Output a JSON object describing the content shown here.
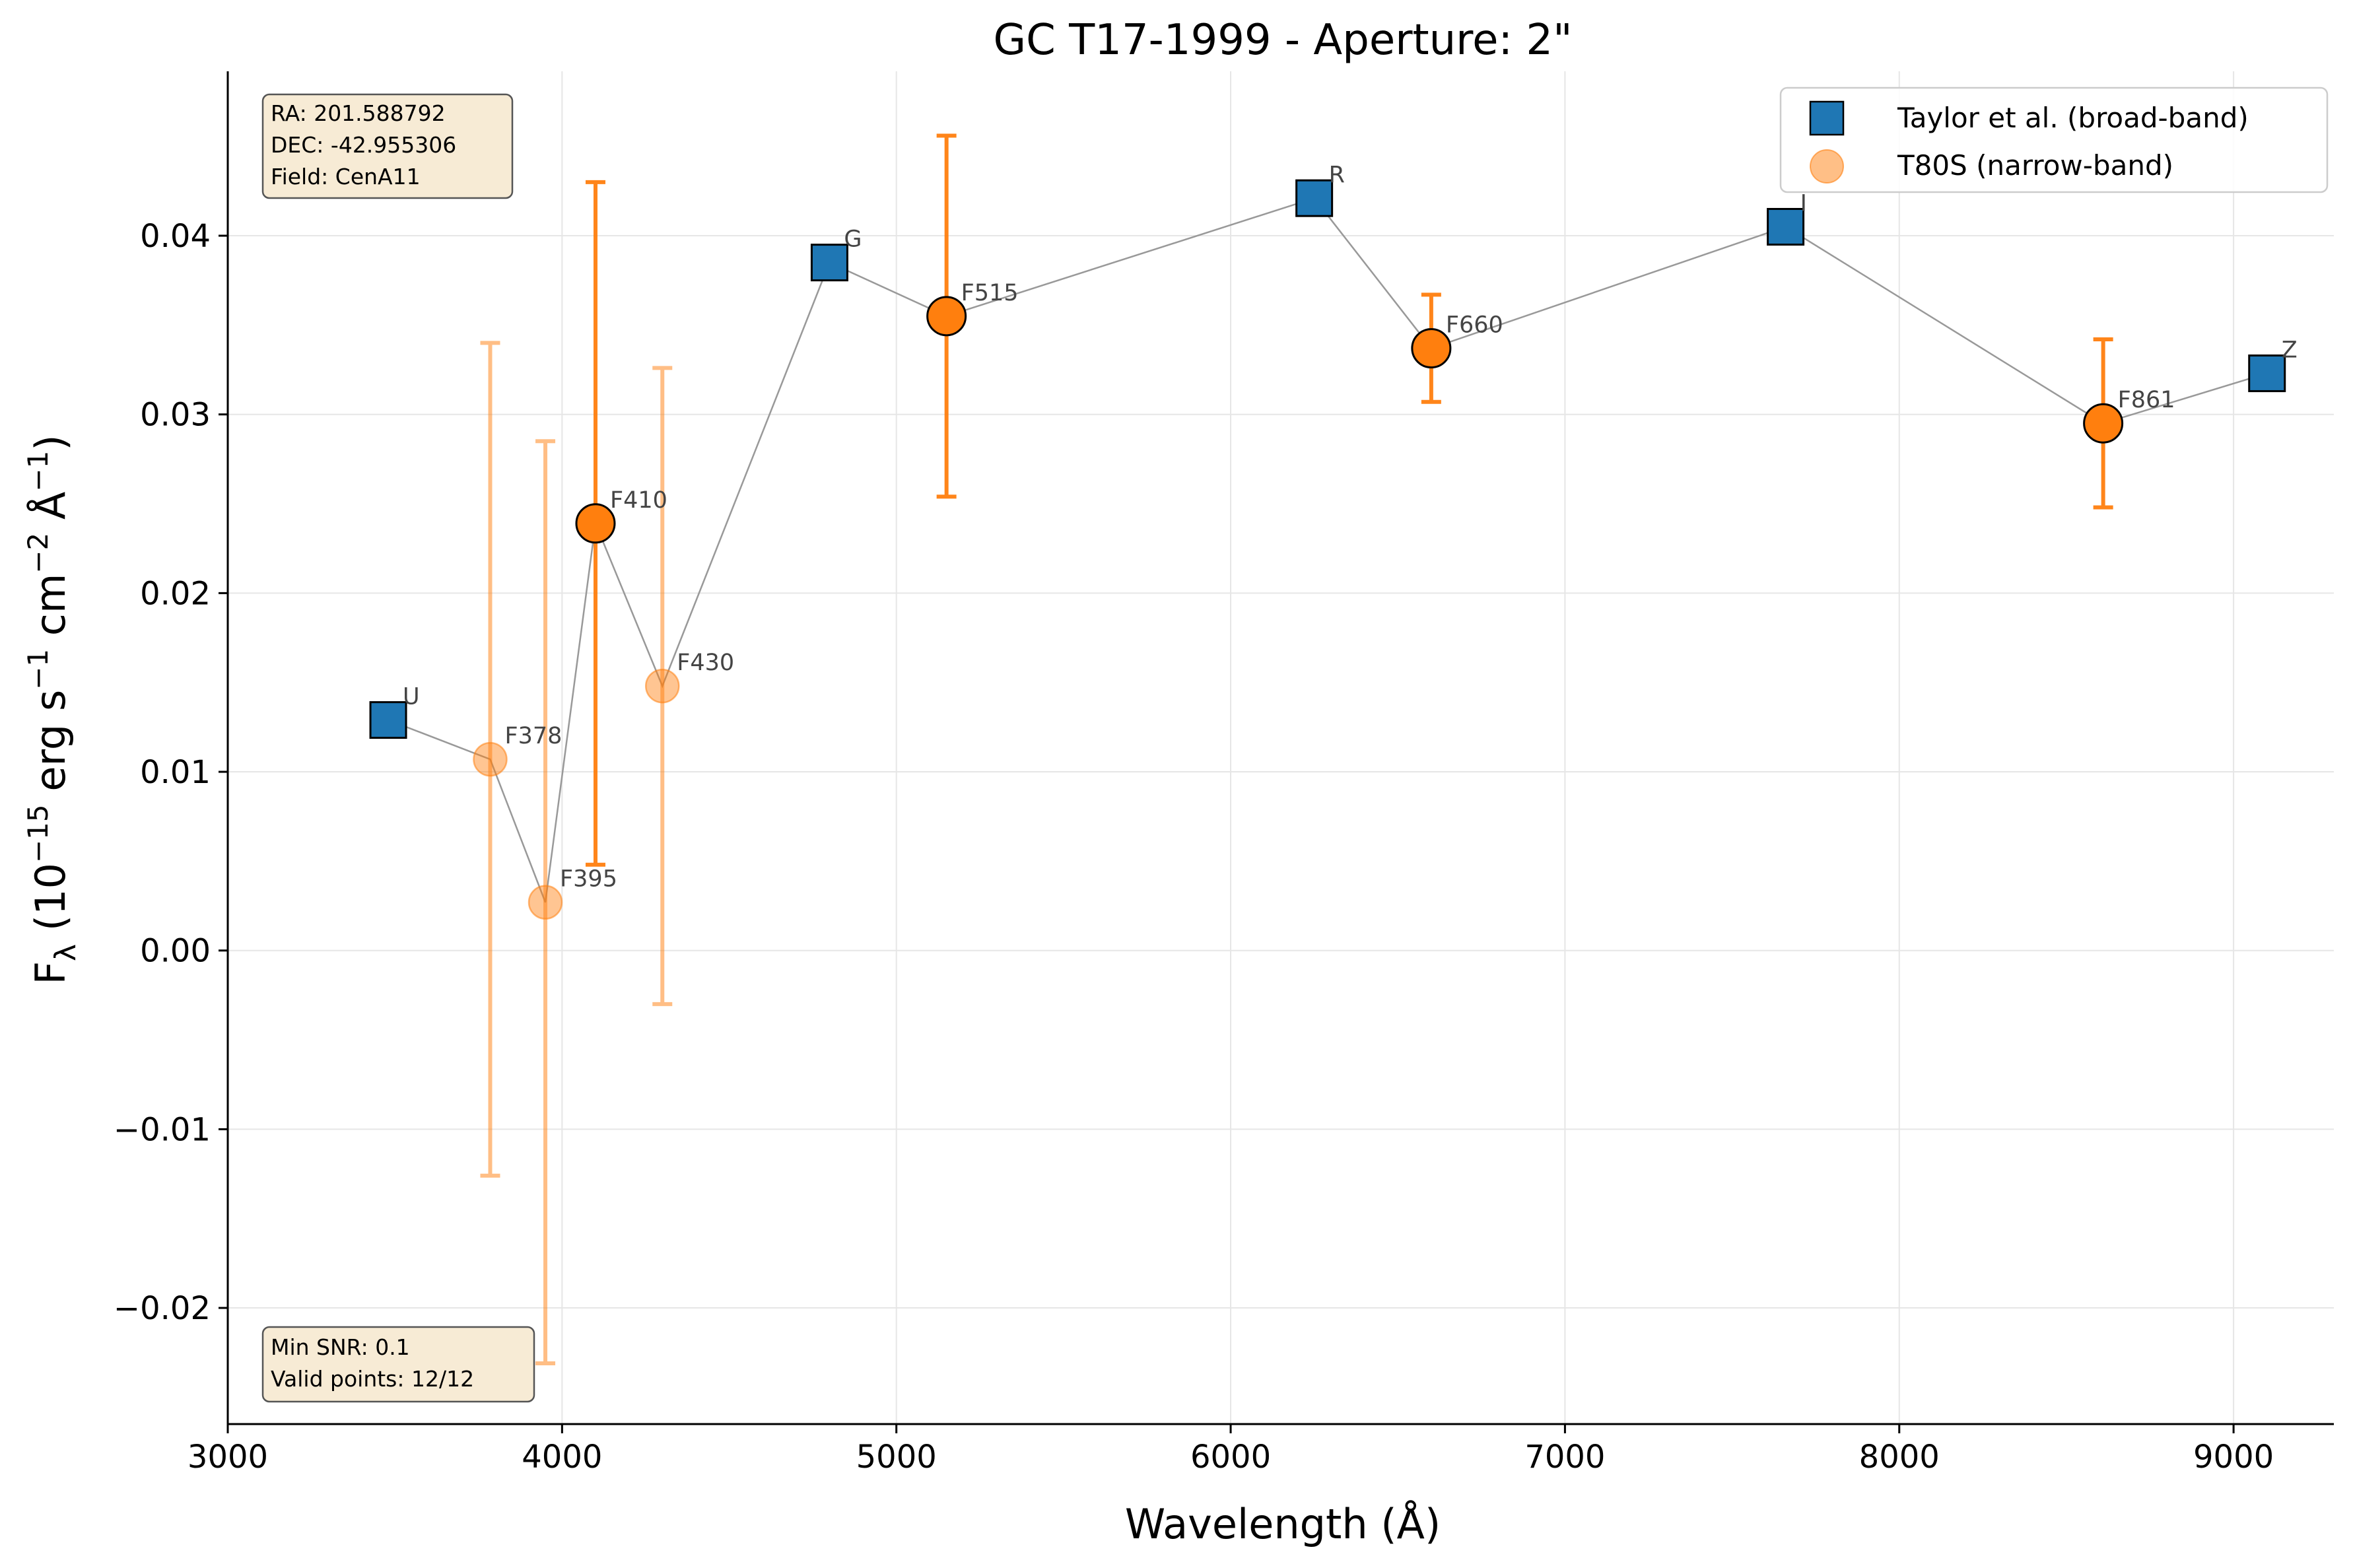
{
  "chart_data": {
    "type": "scatter",
    "title": "GC T17-1999 - Aperture: 2\"",
    "xlabel": "Wavelength (Å)",
    "ylabel": {
      "base": "F",
      "sub": "λ",
      "text_open": " (10",
      "exp1": "−15",
      "text_erg": " erg s",
      "exp2": "−1",
      "text_cm": " cm",
      "exp3": "−2",
      "text_A": " Å",
      "exp4": "−1",
      "text_close": ")"
    },
    "xlim": [
      3000,
      9300
    ],
    "ylim": [
      -0.0265,
      0.0492
    ],
    "x_ticks": [
      3000,
      4000,
      5000,
      6000,
      7000,
      8000,
      9000
    ],
    "x_tick_labels": [
      "3000",
      "4000",
      "5000",
      "6000",
      "7000",
      "8000",
      "9000"
    ],
    "y_ticks": [
      -0.02,
      -0.01,
      0.0,
      0.01,
      0.02,
      0.03,
      0.04
    ],
    "y_tick_labels": [
      "−0.02",
      "−0.01",
      "0.00",
      "0.01",
      "0.02",
      "0.03",
      "0.04"
    ],
    "grid": true,
    "legend_position": "top-right",
    "info_box_top": [
      "RA: 201.588792",
      "DEC: -42.955306",
      "Field: CenA11"
    ],
    "info_box_bottom": [
      "Min SNR: 0.1",
      "Valid points: 12/12"
    ],
    "connector_order": [
      "U",
      "F378",
      "F395",
      "F410",
      "F430",
      "G",
      "F515",
      "R",
      "F660",
      "I",
      "F861",
      "Z"
    ],
    "series": [
      {
        "name": "Taylor et al. (broad-band)",
        "marker": "square",
        "color": "#1f77b4",
        "points": [
          {
            "label": "U",
            "x": 3480,
            "y": 0.0129
          },
          {
            "label": "G",
            "x": 4800,
            "y": 0.0385
          },
          {
            "label": "R",
            "x": 6250,
            "y": 0.0421
          },
          {
            "label": "I",
            "x": 7660,
            "y": 0.0405
          },
          {
            "label": "Z",
            "x": 9100,
            "y": 0.0323
          }
        ]
      },
      {
        "name": "T80S (narrow-band)",
        "marker": "circle",
        "color": "#ff7f0e",
        "points": [
          {
            "label": "F378",
            "x": 3785,
            "y": 0.0107,
            "err": 0.0233,
            "faded": true
          },
          {
            "label": "F395",
            "x": 3950,
            "y": 0.0027,
            "err": 0.0258,
            "faded": true
          },
          {
            "label": "F410",
            "x": 4100,
            "y": 0.0239,
            "err": 0.0191,
            "faded": false
          },
          {
            "label": "F430",
            "x": 4300,
            "y": 0.0148,
            "err": 0.0178,
            "faded": true
          },
          {
            "label": "F515",
            "x": 5150,
            "y": 0.0355,
            "err": 0.0101,
            "faded": false
          },
          {
            "label": "F660",
            "x": 6600,
            "y": 0.0337,
            "err": 0.003,
            "faded": false
          },
          {
            "label": "F861",
            "x": 8610,
            "y": 0.0295,
            "err": 0.0047,
            "faded": false
          }
        ]
      }
    ],
    "colors": {
      "broad": "#1f77b4",
      "narrow": "#ff7f0e",
      "connector": "#999999",
      "grid": "#e6e6e6",
      "box_fill": "#f7ebd5",
      "box_edge": "#555555"
    }
  }
}
